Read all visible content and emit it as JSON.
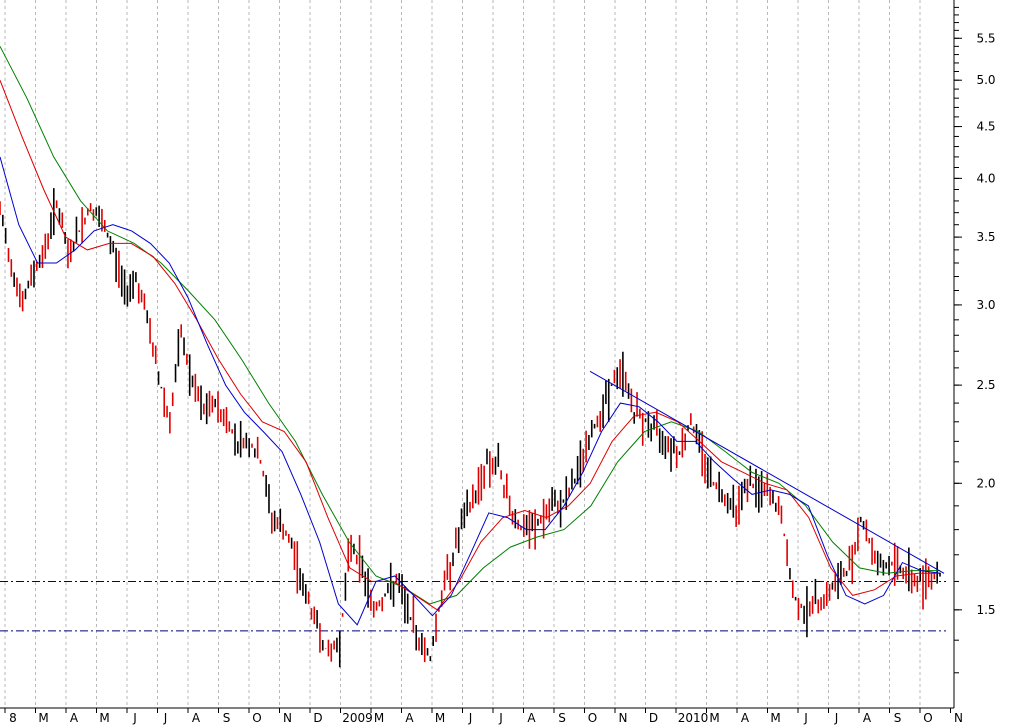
{
  "chart_data": {
    "type": "line",
    "title": "",
    "xlabel": "",
    "ylabel": "",
    "y_scale": "log",
    "ylim": [
      1.2,
      6.0
    ],
    "y_ticks": [
      1.5,
      2.0,
      2.5,
      3.0,
      3.5,
      4.0,
      4.5,
      5.0,
      5.5
    ],
    "y_tick_labels": [
      "1.5",
      "2.0",
      "2.5",
      "3.0",
      "3.5",
      "4.0",
      "4.5",
      "5.0",
      "5.5"
    ],
    "x_tick_labels": [
      "8",
      "M",
      "A",
      "M",
      "J",
      "J",
      "A",
      "S",
      "O",
      "N",
      "D",
      "2009",
      "M",
      "A",
      "M",
      "J",
      "J",
      "A",
      "S",
      "O",
      "N",
      "D",
      "2010",
      "M",
      "A",
      "M",
      "J",
      "J",
      "A",
      "S",
      "O",
      "N"
    ],
    "grid": "vertical dashed at month boundaries",
    "legend": "none",
    "colors": {
      "price": "#dd0000",
      "ma_short": "#0000cc",
      "ma_mid": "#dd0000",
      "ma_long": "#008000",
      "trendline": "#0000cc",
      "support": "#000080",
      "grid": "#b8b8b8"
    },
    "price_close": [
      3.7,
      3.3,
      3.0,
      3.25,
      3.4,
      3.8,
      3.35,
      3.55,
      3.75,
      3.6,
      3.4,
      3.1,
      3.2,
      2.9,
      2.55,
      2.3,
      2.8,
      2.5,
      2.35,
      2.4,
      2.3,
      2.2,
      2.2,
      2.1,
      1.85,
      1.8,
      1.7,
      1.55,
      1.45,
      1.35,
      1.4,
      1.75,
      1.65,
      1.5,
      1.55,
      1.6,
      1.5,
      1.4,
      1.35,
      1.55,
      1.7,
      1.85,
      1.95,
      2.1,
      2.08,
      1.9,
      1.8,
      1.8,
      1.85,
      1.9,
      1.93,
      2.05,
      2.2,
      2.35,
      2.5,
      2.58,
      2.35,
      2.3,
      2.25,
      2.2,
      2.15,
      2.3,
      2.15,
      2.0,
      1.95,
      1.9,
      2.0,
      1.97,
      1.95,
      1.85,
      1.55,
      1.5,
      1.52,
      1.55,
      1.6,
      1.65,
      1.85,
      1.72,
      1.65,
      1.67,
      1.63,
      1.6,
      1.62,
      1.63
    ],
    "moving_average_short": [
      4.2,
      3.6,
      3.3,
      3.3,
      3.4,
      3.55,
      3.6,
      3.55,
      3.45,
      3.3,
      3.05,
      2.75,
      2.5,
      2.35,
      2.25,
      2.15,
      1.95,
      1.75,
      1.52,
      1.45,
      1.6,
      1.62,
      1.55,
      1.48,
      1.55,
      1.7,
      1.87,
      1.85,
      1.8,
      1.8,
      1.9,
      2.05,
      2.25,
      2.4,
      2.38,
      2.3,
      2.2,
      2.2,
      2.1,
      2.02,
      1.95,
      1.97,
      1.95,
      1.9,
      1.7,
      1.55,
      1.52,
      1.55,
      1.67,
      1.64,
      1.63
    ],
    "moving_average_mid": [
      5.0,
      4.4,
      3.9,
      3.5,
      3.4,
      3.45,
      3.45,
      3.35,
      3.15,
      2.9,
      2.65,
      2.45,
      2.3,
      2.25,
      2.1,
      1.85,
      1.65,
      1.6,
      1.6,
      1.55,
      1.5,
      1.6,
      1.75,
      1.85,
      1.88,
      1.85,
      1.9,
      2.0,
      2.2,
      2.33,
      2.35,
      2.3,
      2.2,
      2.1,
      2.05,
      2.0,
      1.97,
      1.85,
      1.65,
      1.55,
      1.57,
      1.62,
      1.63,
      1.63
    ],
    "moving_average_long": [
      5.4,
      4.8,
      4.2,
      3.8,
      3.55,
      3.45,
      3.3,
      3.1,
      2.9,
      2.65,
      2.4,
      2.2,
      1.95,
      1.75,
      1.62,
      1.58,
      1.52,
      1.55,
      1.65,
      1.73,
      1.77,
      1.8,
      1.9,
      2.1,
      2.25,
      2.3,
      2.25,
      2.15,
      2.05,
      2.0,
      1.9,
      1.75,
      1.65,
      1.63,
      1.64,
      1.64
    ],
    "trendline": {
      "from": [
        "N",
        2.58
      ],
      "to": [
        "N",
        1.63
      ]
    },
    "support_levels": [
      1.6,
      1.43
    ]
  }
}
